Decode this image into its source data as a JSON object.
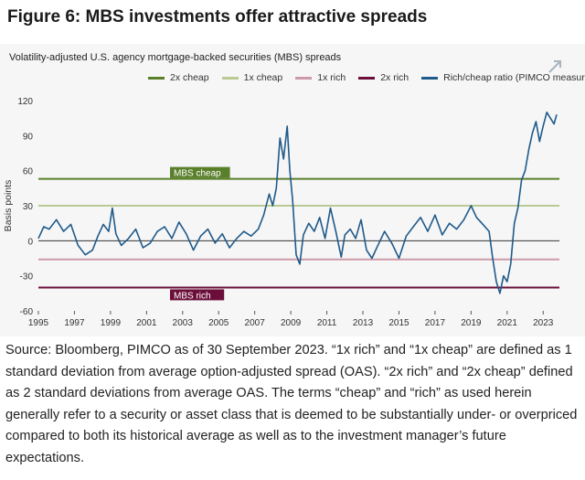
{
  "figure_title": "Figure 6: MBS investments offer attractive spreads",
  "caption": "Source: Bloomberg, PIMCO as of 30 September 2023. “1x rich” and “1x cheap” are defined as 1 standard deviation from average option-adjusted spread (OAS). “2x rich” and “2x cheap” defined as 2 standard deviations from average OAS. The terms “cheap” and “rich” as used herein generally refer to a security or asset class that is deemed to be substantially under- or overpriced compared to both its historical average as well as to the investment manager’s future expectations.",
  "colors": {
    "two_x_cheap": "#5a7f2b",
    "one_x_cheap": "#b9ca94",
    "one_x_rich": "#cd9aa8",
    "two_x_rich": "#6b0f3a",
    "ratio": "#1f5a8a",
    "zero_line": "#333333",
    "panel": "#f6f6f6"
  },
  "chart_data": {
    "type": "line",
    "title": "Volatility-adjusted U.S. agency mortgage-backed securities (MBS) spreads",
    "xlabel": "",
    "ylabel": "Basis points",
    "xlim": [
      1995,
      2023.9
    ],
    "ylim": [
      -60,
      120
    ],
    "yticks": [
      -60,
      -30,
      0,
      30,
      60,
      90,
      120
    ],
    "xticks": [
      1995,
      1997,
      1999,
      2001,
      2003,
      2005,
      2007,
      2009,
      2011,
      2013,
      2015,
      2017,
      2019,
      2021,
      2023
    ],
    "legend": [
      "2x cheap",
      "1x cheap",
      "1x rich",
      "2x rich",
      "Rich/cheap ratio (PIMCO measure)"
    ],
    "legend_position": "top",
    "reference_lines": [
      {
        "name": "2x cheap",
        "value": 53,
        "label": "MBS cheap"
      },
      {
        "name": "1x cheap",
        "value": 30
      },
      {
        "name": "1x rich",
        "value": -16
      },
      {
        "name": "2x rich",
        "value": -40,
        "label": "MBS rich"
      }
    ],
    "series": [
      {
        "name": "Rich/cheap ratio (PIMCO measure)",
        "x": [
          1995,
          1995.3,
          1995.6,
          1996,
          1996.4,
          1996.8,
          1997.2,
          1997.6,
          1998,
          1998.3,
          1998.6,
          1998.9,
          1999.1,
          1999.3,
          1999.6,
          2000,
          2000.4,
          2000.8,
          2001.2,
          2001.6,
          2002,
          2002.4,
          2002.8,
          2003.2,
          2003.6,
          2004,
          2004.4,
          2004.8,
          2005.2,
          2005.6,
          2006,
          2006.4,
          2006.8,
          2007.2,
          2007.5,
          2007.8,
          2008,
          2008.2,
          2008.4,
          2008.6,
          2008.8,
          2008.95,
          2009.1,
          2009.3,
          2009.5,
          2009.7,
          2010,
          2010.3,
          2010.6,
          2010.9,
          2011.2,
          2011.5,
          2011.8,
          2012,
          2012.3,
          2012.6,
          2012.9,
          2013.2,
          2013.5,
          2013.8,
          2014.2,
          2014.6,
          2015,
          2015.4,
          2015.8,
          2016.2,
          2016.6,
          2017,
          2017.4,
          2017.8,
          2018.2,
          2018.6,
          2019,
          2019.3,
          2019.6,
          2020,
          2020.2,
          2020.4,
          2020.6,
          2020.8,
          2021,
          2021.2,
          2021.4,
          2021.6,
          2021.8,
          2022,
          2022.2,
          2022.4,
          2022.6,
          2022.8,
          2023,
          2023.2,
          2023.4,
          2023.6,
          2023.75
        ],
        "values": [
          2,
          12,
          10,
          18,
          8,
          14,
          -4,
          -12,
          -8,
          4,
          14,
          8,
          28,
          6,
          -4,
          2,
          10,
          -6,
          -2,
          8,
          12,
          2,
          16,
          6,
          -8,
          4,
          10,
          -2,
          6,
          -6,
          2,
          8,
          4,
          10,
          22,
          40,
          30,
          45,
          88,
          70,
          98,
          60,
          35,
          -12,
          -20,
          5,
          15,
          8,
          20,
          2,
          28,
          8,
          -14,
          5,
          10,
          2,
          18,
          -8,
          -15,
          -5,
          8,
          -2,
          -15,
          4,
          12,
          20,
          8,
          22,
          5,
          15,
          10,
          18,
          30,
          20,
          15,
          8,
          -15,
          -35,
          -45,
          -30,
          -35,
          -20,
          15,
          28,
          52,
          60,
          78,
          92,
          102,
          85,
          98,
          110,
          105,
          100,
          108
        ]
      }
    ]
  }
}
